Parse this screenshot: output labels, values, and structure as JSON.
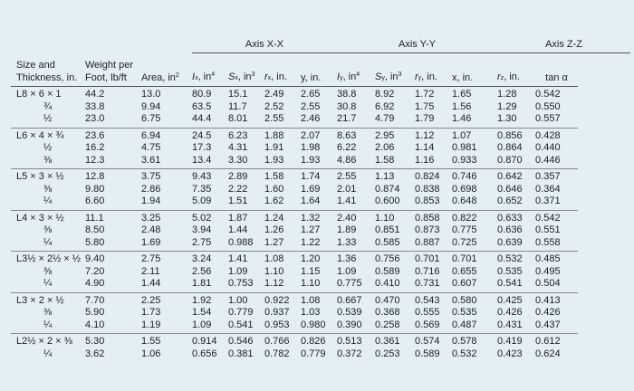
{
  "axis_headers": {
    "x": "Axis X-X",
    "y": "Axis Y-Y",
    "z": "Axis Z-Z"
  },
  "columns": {
    "size": [
      "Size and",
      "Thickness, in."
    ],
    "weight": [
      "Weight per",
      "Foot, lb/ft"
    ],
    "area": "Area, in",
    "Ix": "I",
    "Sx": "S",
    "rx": "r",
    "y": "y, in.",
    "Iy": "I",
    "Sy": "S",
    "ry": "r",
    "x": "x, in.",
    "rz": "r",
    "tan": "tan α"
  },
  "groups": [
    {
      "sizes": [
        "L8 × 6 × 1",
        "¾",
        "½"
      ],
      "weight": [
        "44.2",
        "33.8",
        "23.0"
      ],
      "area": [
        "13.0",
        "9.94",
        "6.75"
      ],
      "Ix": [
        "80.9",
        "63.5",
        "44.4"
      ],
      "Sx": [
        "15.1",
        "11.7",
        "8.01"
      ],
      "rx": [
        "2.49",
        "2.52",
        "2.55"
      ],
      "y": [
        "2.65",
        "2.55",
        "2.46"
      ],
      "Iy": [
        "38.8",
        "30.8",
        "21.7"
      ],
      "Sy": [
        "8.92",
        "6.92",
        "4.79"
      ],
      "ry": [
        "1.72",
        "1.75",
        "1.79"
      ],
      "x": [
        "1.65",
        "1.56",
        "1.46"
      ],
      "rz": [
        "1.28",
        "1.29",
        "1.30"
      ],
      "tan": [
        "0.542",
        "0.550",
        "0.557"
      ]
    },
    {
      "sizes": [
        "L6 × 4 × ¾",
        "½",
        "⅜"
      ],
      "weight": [
        "23.6",
        "16.2",
        "12.3"
      ],
      "area": [
        "6.94",
        "4.75",
        "3.61"
      ],
      "Ix": [
        "24.5",
        "17.3",
        "13.4"
      ],
      "Sx": [
        "6.23",
        "4.31",
        "3.30"
      ],
      "rx": [
        "1.88",
        "1.91",
        "1.93"
      ],
      "y": [
        "2.07",
        "1.98",
        "1.93"
      ],
      "Iy": [
        "8.63",
        "6.22",
        "4.86"
      ],
      "Sy": [
        "2.95",
        "2.06",
        "1.58"
      ],
      "ry": [
        "1.12",
        "1.14",
        "1.16"
      ],
      "x": [
        "1.07",
        "0.981",
        "0.933"
      ],
      "rz": [
        "0.856",
        "0.864",
        "0.870"
      ],
      "tan": [
        "0.428",
        "0.440",
        "0.446"
      ]
    },
    {
      "sizes": [
        "L5 × 3 × ½",
        "⅜",
        "¼"
      ],
      "weight": [
        "12.8",
        "9.80",
        "6.60"
      ],
      "area": [
        "3.75",
        "2.86",
        "1.94"
      ],
      "Ix": [
        "9.43",
        "7.35",
        "5.09"
      ],
      "Sx": [
        "2.89",
        "2.22",
        "1.51"
      ],
      "rx": [
        "1.58",
        "1.60",
        "1.62"
      ],
      "y": [
        "1.74",
        "1.69",
        "1.64"
      ],
      "Iy": [
        "2.55",
        "2.01",
        "1.41"
      ],
      "Sy": [
        "1.13",
        "0.874",
        "0.600"
      ],
      "ry": [
        "0.824",
        "0.838",
        "0.853"
      ],
      "x": [
        "0.746",
        "0.698",
        "0.648"
      ],
      "rz": [
        "0.642",
        "0.646",
        "0.652"
      ],
      "tan": [
        "0.357",
        "0.364",
        "0.371"
      ]
    },
    {
      "sizes": [
        "L4 × 3 × ½",
        "⅜",
        "¼"
      ],
      "weight": [
        "11.1",
        "8.50",
        "5.80"
      ],
      "area": [
        "3.25",
        "2.48",
        "1.69"
      ],
      "Ix": [
        "5.02",
        "3.94",
        "2.75"
      ],
      "Sx": [
        "1.87",
        "1.44",
        "0.988"
      ],
      "rx": [
        "1.24",
        "1.26",
        "1.27"
      ],
      "y": [
        "1.32",
        "1.27",
        "1.22"
      ],
      "Iy": [
        "2.40",
        "1.89",
        "1.33"
      ],
      "Sy": [
        "1.10",
        "0.851",
        "0.585"
      ],
      "ry": [
        "0.858",
        "0.873",
        "0.887"
      ],
      "x": [
        "0.822",
        "0.775",
        "0.725"
      ],
      "rz": [
        "0.633",
        "0.636",
        "0.639"
      ],
      "tan": [
        "0.542",
        "0.551",
        "0.558"
      ]
    },
    {
      "sizes": [
        "L3½ × 2½ × ½",
        "⅜",
        "¼"
      ],
      "weight": [
        "9.40",
        "7.20",
        "4.90"
      ],
      "area": [
        "2.75",
        "2.11",
        "1.44"
      ],
      "Ix": [
        "3.24",
        "2.56",
        "1.81"
      ],
      "Sx": [
        "1.41",
        "1.09",
        "0.753"
      ],
      "rx": [
        "1.08",
        "1.10",
        "1.12"
      ],
      "y": [
        "1.20",
        "1.15",
        "1.10"
      ],
      "Iy": [
        "1.36",
        "1.09",
        "0.775"
      ],
      "Sy": [
        "0.756",
        "0.589",
        "0.410"
      ],
      "ry": [
        "0.701",
        "0.716",
        "0.731"
      ],
      "x": [
        "0.701",
        "0.655",
        "0.607"
      ],
      "rz": [
        "0.532",
        "0.535",
        "0.541"
      ],
      "tan": [
        "0.485",
        "0.495",
        "0.504"
      ]
    },
    {
      "sizes": [
        "L3 × 2 × ½",
        "⅜",
        "¼"
      ],
      "weight": [
        "7.70",
        "5.90",
        "4.10"
      ],
      "area": [
        "2.25",
        "1.73",
        "1.19"
      ],
      "Ix": [
        "1.92",
        "1.54",
        "1.09"
      ],
      "Sx": [
        "1.00",
        "0.779",
        "0.541"
      ],
      "rx": [
        "0.922",
        "0.937",
        "0.953"
      ],
      "y": [
        "1.08",
        "1.03",
        "0.980"
      ],
      "Iy": [
        "0.667",
        "0.539",
        "0.390"
      ],
      "Sy": [
        "0.470",
        "0.368",
        "0.258"
      ],
      "ry": [
        "0.543",
        "0.555",
        "0.569"
      ],
      "x": [
        "0.580",
        "0.535",
        "0.487"
      ],
      "rz": [
        "0.425",
        "0.426",
        "0.431"
      ],
      "tan": [
        "0.413",
        "0.426",
        "0.437"
      ]
    },
    {
      "sizes": [
        "L2½ × 2 × ⅜",
        "¼"
      ],
      "weight": [
        "5.30",
        "3.62"
      ],
      "area": [
        "1.55",
        "1.06"
      ],
      "Ix": [
        "0.914",
        "0.656"
      ],
      "Sx": [
        "0.546",
        "0.381"
      ],
      "rx": [
        "0.766",
        "0.782"
      ],
      "y": [
        "0.826",
        "0.779"
      ],
      "Iy": [
        "0.513",
        "0.372"
      ],
      "Sy": [
        "0.361",
        "0.253"
      ],
      "ry": [
        "0.574",
        "0.589"
      ],
      "x": [
        "0.578",
        "0.532"
      ],
      "rz": [
        "0.419",
        "0.423"
      ],
      "tan": [
        "0.612",
        "0.624"
      ]
    }
  ]
}
